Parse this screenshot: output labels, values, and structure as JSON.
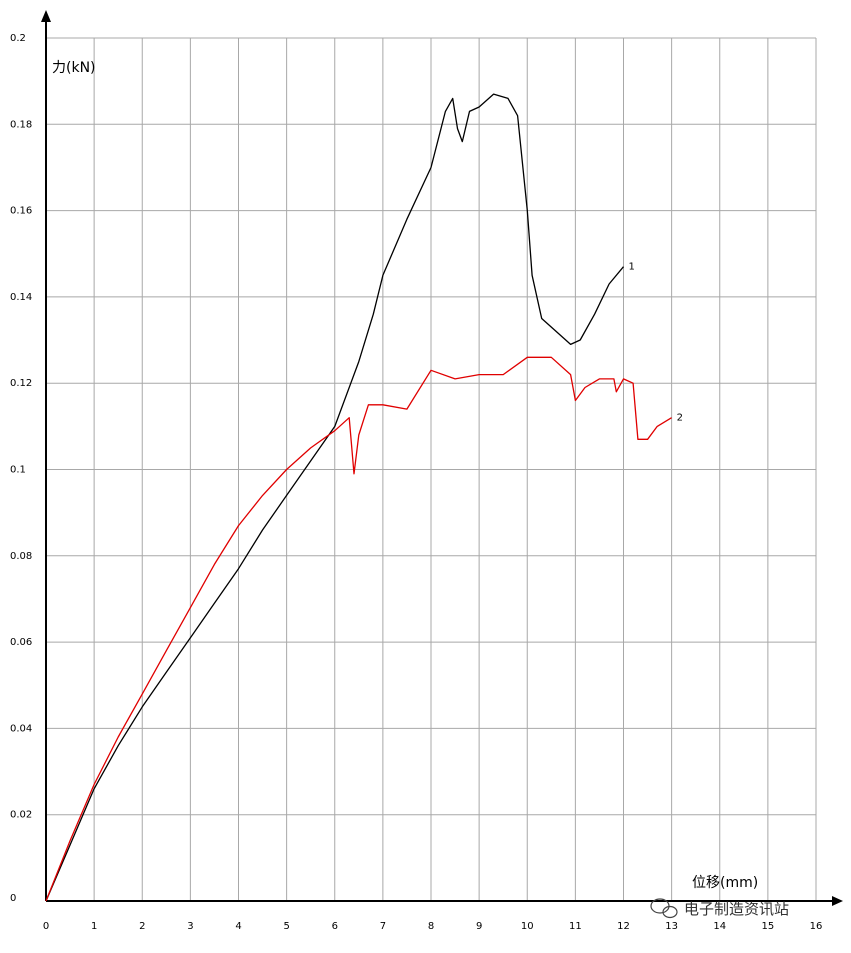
{
  "chart_data": {
    "type": "line",
    "xlabel": "位移(mm)",
    "ylabel": "力(kN)",
    "xlim": [
      0,
      16
    ],
    "ylim": [
      0,
      0.2
    ],
    "grid": true,
    "x_ticks": [
      "0",
      "1",
      "2",
      "3",
      "4",
      "5",
      "6",
      "7",
      "8",
      "9",
      "10",
      "11",
      "12",
      "13",
      "14",
      "15",
      "16"
    ],
    "y_ticks": [
      "0",
      "0.02",
      "0.04",
      "0.06",
      "0.08",
      "0.1",
      "0.12",
      "0.14",
      "0.16",
      "0.18",
      "0.2"
    ],
    "series": [
      {
        "name": "1",
        "color": "#000000",
        "points": [
          [
            0,
            0
          ],
          [
            0.5,
            0.013
          ],
          [
            1,
            0.026
          ],
          [
            1.5,
            0.036
          ],
          [
            2,
            0.045
          ],
          [
            2.5,
            0.053
          ],
          [
            3,
            0.061
          ],
          [
            3.5,
            0.069
          ],
          [
            4,
            0.077
          ],
          [
            4.5,
            0.086
          ],
          [
            5,
            0.094
          ],
          [
            5.5,
            0.102
          ],
          [
            6,
            0.11
          ],
          [
            6.5,
            0.125
          ],
          [
            6.8,
            0.136
          ],
          [
            7,
            0.145
          ],
          [
            7.5,
            0.158
          ],
          [
            8,
            0.17
          ],
          [
            8.3,
            0.183
          ],
          [
            8.45,
            0.186
          ],
          [
            8.55,
            0.179
          ],
          [
            8.65,
            0.176
          ],
          [
            8.8,
            0.183
          ],
          [
            9,
            0.184
          ],
          [
            9.3,
            0.187
          ],
          [
            9.6,
            0.186
          ],
          [
            9.8,
            0.182
          ],
          [
            10,
            0.16
          ],
          [
            10.1,
            0.145
          ],
          [
            10.3,
            0.135
          ],
          [
            10.6,
            0.132
          ],
          [
            10.9,
            0.129
          ],
          [
            11.1,
            0.13
          ],
          [
            11.4,
            0.136
          ],
          [
            11.7,
            0.143
          ],
          [
            12,
            0.147
          ]
        ]
      },
      {
        "name": "2",
        "color": "#e00000",
        "points": [
          [
            0,
            0
          ],
          [
            0.5,
            0.014
          ],
          [
            1,
            0.027
          ],
          [
            1.5,
            0.038
          ],
          [
            2,
            0.048
          ],
          [
            2.5,
            0.058
          ],
          [
            3,
            0.068
          ],
          [
            3.5,
            0.078
          ],
          [
            4,
            0.087
          ],
          [
            4.5,
            0.094
          ],
          [
            5,
            0.1
          ],
          [
            5.5,
            0.105
          ],
          [
            6,
            0.109
          ],
          [
            6.3,
            0.112
          ],
          [
            6.4,
            0.099
          ],
          [
            6.5,
            0.108
          ],
          [
            6.7,
            0.115
          ],
          [
            7,
            0.115
          ],
          [
            7.5,
            0.114
          ],
          [
            8,
            0.123
          ],
          [
            8.5,
            0.121
          ],
          [
            9,
            0.122
          ],
          [
            9.5,
            0.122
          ],
          [
            10,
            0.126
          ],
          [
            10.5,
            0.126
          ],
          [
            10.9,
            0.122
          ],
          [
            11,
            0.116
          ],
          [
            11.2,
            0.119
          ],
          [
            11.5,
            0.121
          ],
          [
            11.8,
            0.121
          ],
          [
            11.85,
            0.118
          ],
          [
            12,
            0.121
          ],
          [
            12.2,
            0.12
          ],
          [
            12.3,
            0.107
          ],
          [
            12.5,
            0.107
          ],
          [
            12.7,
            0.11
          ],
          [
            13,
            0.112
          ]
        ]
      }
    ]
  },
  "watermark": {
    "text": "电子制造资讯站",
    "icon": "wechat-icon"
  }
}
